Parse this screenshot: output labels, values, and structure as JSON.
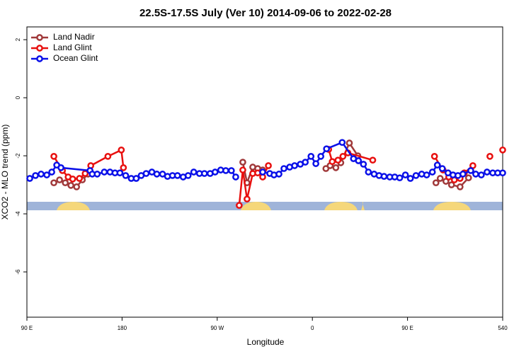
{
  "chart_data": {
    "type": "line",
    "title": "22.5S-17.5S July (Ver 10)   2014-09-06 to 2022-02-28",
    "xlabel": "Longitude",
    "ylabel": "XCO2 - MLO trend (ppm)",
    "xlim": [
      90,
      540
    ],
    "ylim": [
      -7.56,
      2.44
    ],
    "xticks": [
      {
        "value": 90,
        "label": "90 E"
      },
      180,
      {
        "value": 270,
        "label": "90 W"
      },
      {
        "value": 360,
        "label": "0"
      },
      {
        "value": 450,
        "label": "90 E"
      },
      540
    ],
    "yticks": [
      -6,
      -4,
      -2,
      0,
      2
    ],
    "legend": "top-left",
    "series": [
      {
        "name": "Land Nadir",
        "color": "#a0393a",
        "x": [
          115.5,
          120.9,
          126.3,
          131.6,
          137.0,
          142.4,
          147.8,
          220,
          294.2,
          298.2,
          303.6,
          308.3,
          313.0,
          340,
          372.8,
          376.8,
          382.2,
          386.9,
          395.0,
          403.0,
          440,
          476.9,
          480.9,
          486.3,
          491.6,
          499.7,
          507.7
        ],
        "values": [
          -2.93,
          -2.83,
          -2.93,
          -3.02,
          -3.07,
          -2.83,
          -2.63,
          null,
          -2.22,
          -2.93,
          -2.39,
          -2.44,
          -2.49,
          null,
          -2.44,
          -2.34,
          -2.41,
          -2.24,
          -1.56,
          -2.0,
          null,
          -2.93,
          -2.78,
          -2.88,
          -3.0,
          -3.07,
          -2.76
        ]
      },
      {
        "name": "Land Glint",
        "color": "#e8100f",
        "x": [
          115.5,
          123.6,
          129.0,
          133.3,
          139.7,
          145.1,
          150.4,
          166.6,
          179.3,
          181.3,
          240,
          290.8,
          294.2,
          298.2,
          303.6,
          308.3,
          313.0,
          318.4,
          350,
          375.4,
          378.8,
          384.2,
          388.9,
          393.6,
          417.1,
          450,
          475.5,
          483.6,
          489.0,
          494.3,
          499.7,
          503.7,
          511.8,
          520,
          527.9,
          535,
          540.0
        ],
        "values": [
          -2.02,
          -2.51,
          -2.73,
          -2.8,
          -2.78,
          -2.61,
          -2.34,
          -2.02,
          -1.8,
          -2.41,
          null,
          -3.71,
          -2.49,
          -3.49,
          -2.61,
          -2.59,
          -2.73,
          -2.34,
          null,
          -1.78,
          -2.2,
          -2.15,
          -2.02,
          -1.9,
          -2.15,
          null,
          -2.02,
          -2.49,
          -2.73,
          -2.83,
          -2.78,
          -2.59,
          -2.34,
          null,
          -2.02,
          null,
          -1.8
        ]
      },
      {
        "name": "Ocean Glint",
        "color": "#0a10e8",
        "x": [
          92.7,
          98.1,
          103.4,
          108.8,
          113.5,
          118.2,
          122.2,
          149.7,
          151.8,
          156.5,
          163.2,
          168.6,
          173.3,
          178.0,
          183.4,
          188.7,
          193.4,
          198.1,
          202.8,
          208.2,
          212.9,
          218.3,
          223.0,
          227.7,
          232.4,
          237.8,
          242.5,
          247.8,
          253.2,
          257.9,
          263.3,
          268.0,
          273.3,
          278.1,
          283.4,
          287.5,
          300,
          313.0,
          319.7,
          323.7,
          328.4,
          333.1,
          338.5,
          343.2,
          348.6,
          353.3,
          358.7,
          363.3,
          368.0,
          373.4,
          388.2,
          398.9,
          403.6,
          408.3,
          413.0,
          418.4,
          423.1,
          427.8,
          433.2,
          437.9,
          442.6,
          448.0,
          452.7,
          458.0,
          463.4,
          468.1,
          473.5,
          478.2,
          482.9,
          488.3,
          493.0,
          497.7,
          502.4,
          509.8,
          514.5,
          519.8,
          525.2,
          530.6,
          535.3,
          540.0
        ],
        "values": [
          -2.78,
          -2.68,
          -2.63,
          -2.66,
          -2.56,
          -2.32,
          -2.41,
          -2.51,
          -2.63,
          -2.63,
          -2.56,
          -2.56,
          -2.59,
          -2.59,
          -2.68,
          -2.78,
          -2.78,
          -2.68,
          -2.61,
          -2.56,
          -2.63,
          -2.63,
          -2.71,
          -2.68,
          -2.68,
          -2.73,
          -2.68,
          -2.56,
          -2.61,
          -2.61,
          -2.61,
          -2.56,
          -2.49,
          -2.51,
          -2.51,
          -2.73,
          null,
          -2.56,
          -2.61,
          -2.66,
          -2.63,
          -2.44,
          -2.39,
          -2.34,
          -2.29,
          -2.22,
          -2.02,
          -2.27,
          -2.02,
          -1.76,
          -1.54,
          -2.1,
          -2.17,
          -2.29,
          -2.56,
          -2.63,
          -2.68,
          -2.71,
          -2.73,
          -2.73,
          -2.76,
          -2.66,
          -2.78,
          -2.68,
          -2.63,
          -2.66,
          -2.56,
          -2.32,
          -2.44,
          -2.59,
          -2.66,
          -2.68,
          -2.63,
          -2.51,
          -2.63,
          -2.66,
          -2.56,
          -2.59,
          -2.59,
          -2.59
        ]
      }
    ]
  }
}
